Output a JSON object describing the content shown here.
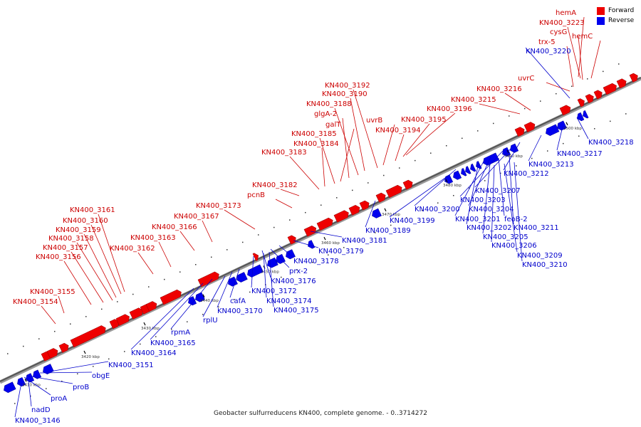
{
  "caption": "Geobacter sulfurreducens KN400, complete genome. - 0..3714272",
  "legend": [
    {
      "label": "Forward",
      "color": "#ee0000"
    },
    {
      "label": "Reverse",
      "color": "#0000ee"
    }
  ],
  "ticks": [
    "3410 kbp",
    "3420 kbp",
    "3430 kbp",
    "3440 kbp",
    "3450 kbp",
    "3460 kbp",
    "3470 kbp",
    "3480 kbp",
    "3490 kbp",
    "3500 kbp"
  ],
  "forward_labels": [
    "hemA",
    "KN400_3223",
    "cysG",
    "hemC",
    "trx-5",
    "uvrC",
    "KN400_3216",
    "KN400_3215",
    "KN400_3196",
    "KN400_3195",
    "KN400_3194",
    "uvrB",
    "KN400_3192",
    "KN400_3190",
    "KN400_3188",
    "glgA-2",
    "galT",
    "KN400_3185",
    "KN400_3184",
    "KN400_3183",
    "KN400_3182",
    "pcnB",
    "KN400_3173",
    "KN400_3167",
    "KN400_3166",
    "KN400_3163",
    "KN400_3162",
    "KN400_3161",
    "KN400_3160",
    "KN400_3159",
    "KN400_3158",
    "KN400_3157",
    "KN400_3156",
    "KN400_3155",
    "KN400_3154"
  ],
  "reverse_labels": [
    "KN400_3220",
    "KN400_3218",
    "KN400_3217",
    "KN400_3213",
    "KN400_3212",
    "KN400_3207",
    "KN400_3203",
    "KN400_3204",
    "feoB-2",
    "KN400_3211",
    "KN400_3201",
    "KN400_3202",
    "KN400_3205",
    "KN400_3206",
    "KN400_3209",
    "KN400_3210",
    "KN400_3200",
    "KN400_3199",
    "KN400_3189",
    "KN400_3181",
    "KN400_3179",
    "KN400_3178",
    "prx-2",
    "KN400_3176",
    "KN400_3172",
    "KN400_3174",
    "KN400_3175",
    "cafA",
    "KN400_3170",
    "rplU",
    "rpmA",
    "KN400_3165",
    "KN400_3164",
    "KN400_3151",
    "obgE",
    "proB",
    "proA",
    "nadD",
    "KN400_3146"
  ]
}
